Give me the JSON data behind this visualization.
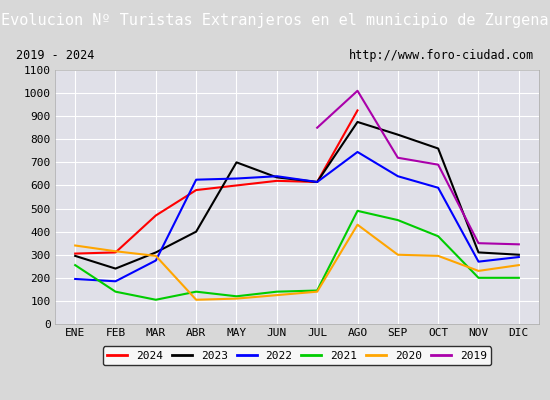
{
  "title": "Evolucion Nº Turistas Extranjeros en el municipio de Zurgena",
  "subtitle_left": "2019 - 2024",
  "subtitle_right": "http://www.foro-ciudad.com",
  "months": [
    "ENE",
    "FEB",
    "MAR",
    "ABR",
    "MAY",
    "JUN",
    "JUL",
    "AGO",
    "SEP",
    "OCT",
    "NOV",
    "DIC"
  ],
  "series": {
    "2024": [
      305,
      310,
      470,
      580,
      600,
      620,
      615,
      925,
      null,
      null,
      null,
      null
    ],
    "2023": [
      295,
      240,
      310,
      400,
      700,
      635,
      615,
      875,
      820,
      760,
      310,
      300
    ],
    "2022": [
      195,
      185,
      275,
      625,
      630,
      640,
      615,
      745,
      640,
      590,
      270,
      290
    ],
    "2021": [
      255,
      140,
      105,
      140,
      120,
      140,
      145,
      490,
      450,
      380,
      200,
      200
    ],
    "2020": [
      340,
      315,
      295,
      105,
      110,
      125,
      140,
      430,
      300,
      295,
      230,
      255
    ],
    "2019": [
      null,
      null,
      null,
      null,
      null,
      null,
      850,
      1010,
      720,
      690,
      350,
      345
    ]
  },
  "colors": {
    "2024": "#ff0000",
    "2023": "#000000",
    "2022": "#0000ff",
    "2021": "#00cc00",
    "2020": "#ffa500",
    "2019": "#aa00aa"
  },
  "ylim": [
    0,
    1100
  ],
  "yticks": [
    0,
    100,
    200,
    300,
    400,
    500,
    600,
    700,
    800,
    900,
    1000,
    1100
  ],
  "title_bg": "#4472c4",
  "title_color": "#ffffff",
  "plot_bg": "#e0e0e8",
  "frame_bg": "#d8d8d8",
  "grid_color": "#ffffff",
  "title_fontsize": 11,
  "axis_fontsize": 8,
  "legend_fontsize": 8
}
